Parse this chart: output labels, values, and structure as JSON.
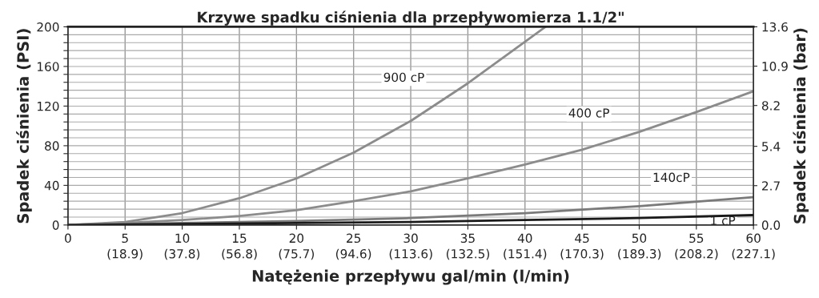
{
  "chart_data": {
    "type": "line",
    "title": "Krzywe spadku ciśnienia dla przepływomierza 1.1/2\"",
    "xlabel": "Natężenie przepływu gal/min (l/min)",
    "ylabel": "Spadek ciśnienia (PSI)",
    "y2label": "Spadek ciśnienia (bar)",
    "series": [
      {
        "name": "900 cP",
        "color": "#8c8c8c",
        "x": [
          0,
          5,
          10,
          15,
          20,
          25,
          30,
          35,
          40,
          41.8
        ],
        "values": [
          0,
          3,
          12,
          27,
          47,
          73,
          105,
          143,
          185,
          200
        ]
      },
      {
        "name": "400 cP",
        "color": "#8c8c8c",
        "x": [
          0,
          5,
          10,
          15,
          20,
          25,
          30,
          35,
          40,
          45,
          50,
          55,
          60
        ],
        "values": [
          0,
          2,
          5,
          9,
          15,
          24,
          34,
          47,
          61,
          76,
          94,
          114,
          135
        ]
      },
      {
        "name": "140cP",
        "color": "#7a7a7a",
        "x": [
          0,
          10,
          20,
          30,
          40,
          50,
          60
        ],
        "values": [
          0,
          2,
          4,
          7,
          12,
          19,
          28
        ]
      },
      {
        "name": "1 cP",
        "color": "#1a1a1a",
        "x": [
          0,
          10,
          20,
          30,
          40,
          50,
          60
        ],
        "values": [
          0,
          1,
          2,
          3,
          5,
          7,
          10
        ]
      }
    ],
    "xlim": [
      0,
      60
    ],
    "ylim": [
      0,
      200
    ],
    "y2lim": [
      0,
      13.6
    ],
    "x2lim": [
      0,
      227.1
    ],
    "xticks": [
      0,
      5,
      10,
      15,
      20,
      25,
      30,
      35,
      40,
      45,
      50,
      55,
      60
    ],
    "x2ticks": [
      {
        "value": 18.9,
        "label": "(18.9)"
      },
      {
        "value": 37.8,
        "label": "(37.8)"
      },
      {
        "value": 56.8,
        "label": "(56.8)"
      },
      {
        "value": 75.7,
        "label": "(75.7)"
      },
      {
        "value": 94.6,
        "label": "(94.6)"
      },
      {
        "value": 113.6,
        "label": "(113.6)"
      },
      {
        "value": 132.5,
        "label": "(132.5)"
      },
      {
        "value": 151.4,
        "label": "(151.4)"
      },
      {
        "value": 170.3,
        "label": "(170.3)"
      },
      {
        "value": 189.3,
        "label": "(189.3)"
      },
      {
        "value": 208.2,
        "label": "(208.2)"
      },
      {
        "value": 227.1,
        "label": "(227.1)"
      }
    ],
    "yticks": [
      0,
      {
        "value": 8,
        "label": null
      },
      {
        "value": 16,
        "label": null
      },
      {
        "value": 24,
        "label": null
      },
      {
        "value": 32,
        "label": null
      },
      40,
      {
        "value": 48,
        "label": null
      },
      {
        "value": 56,
        "label": null
      },
      {
        "value": 64,
        "label": null
      },
      {
        "value": 72,
        "label": null
      },
      80,
      {
        "value": 88,
        "label": null
      },
      {
        "value": 96,
        "label": null
      },
      {
        "value": 104,
        "label": null
      },
      {
        "value": 112,
        "label": null
      },
      120,
      {
        "value": 128,
        "label": null
      },
      {
        "value": 136,
        "label": null
      },
      {
        "value": 144,
        "label": null
      },
      {
        "value": 152,
        "label": null
      },
      160,
      {
        "value": 168,
        "label": null
      },
      {
        "value": 176,
        "label": null
      },
      {
        "value": 184,
        "label": null
      },
      {
        "value": 192,
        "label": null
      },
      200
    ],
    "y2ticks": [
      {
        "value": 0,
        "label": "0.0"
      },
      2.7,
      5.4,
      8.2,
      10.9,
      13.6
    ],
    "grid": true,
    "line_style": "solid"
  }
}
